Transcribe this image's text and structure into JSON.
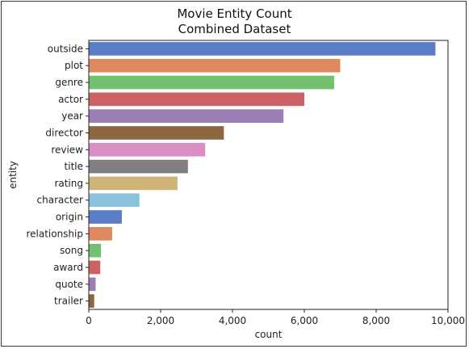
{
  "chart_data": {
    "type": "bar",
    "orientation": "horizontal",
    "title": "Movie Entity Count",
    "subtitle": "Combined Dataset",
    "xlabel": "count",
    "ylabel": "entity",
    "xlim": [
      0,
      10000
    ],
    "xticks": [
      0,
      2000,
      4000,
      6000,
      8000,
      10000
    ],
    "xtick_labels": [
      "0",
      "2,000",
      "4,000",
      "6,000",
      "8,000",
      "10,000"
    ],
    "grid": false,
    "categories": [
      "outside",
      "plot",
      "genre",
      "actor",
      "year",
      "director",
      "review",
      "title",
      "rating",
      "character",
      "origin",
      "relationship",
      "song",
      "award",
      "quote",
      "trailer"
    ],
    "values": [
      9650,
      7000,
      6830,
      6000,
      5420,
      3760,
      3240,
      2760,
      2470,
      1410,
      920,
      650,
      340,
      320,
      190,
      150
    ],
    "colors": [
      "#5a7dc5",
      "#de8a5e",
      "#72c16f",
      "#cc6266",
      "#9a7fb5",
      "#8c6543",
      "#d98dc3",
      "#7f7f7f",
      "#cfb47a",
      "#8ac3db",
      "#5a7dc5",
      "#de8a5e",
      "#72c16f",
      "#cc6266",
      "#9a7fb5",
      "#8c6543"
    ]
  }
}
